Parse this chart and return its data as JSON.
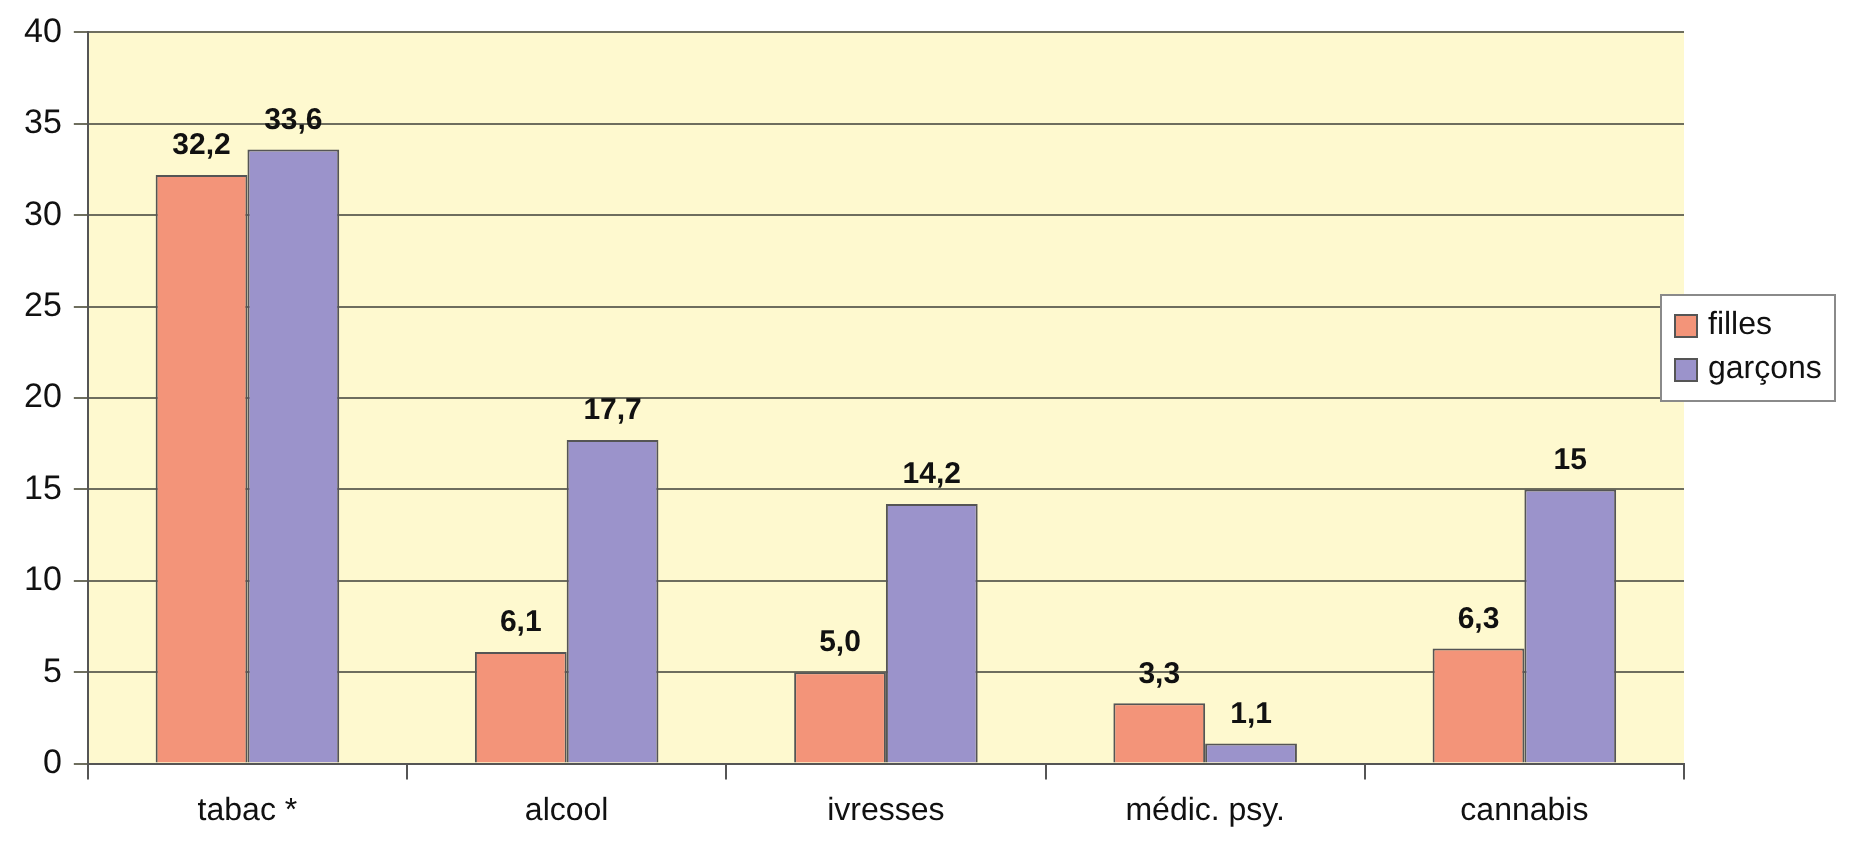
{
  "chart_data": {
    "type": "bar",
    "categories": [
      "tabac *",
      "alcool",
      "ivresses",
      "médic. psy.",
      "cannabis"
    ],
    "series": [
      {
        "name": "filles",
        "color": "#f39479",
        "values": [
          32.2,
          6.1,
          5.0,
          3.3,
          6.3
        ],
        "value_labels": [
          "32,2",
          "6,1",
          "5,0",
          "3,3",
          "6,3"
        ]
      },
      {
        "name": "garçons",
        "color": "#9b93cb",
        "values": [
          33.6,
          17.7,
          14.2,
          1.1,
          15
        ],
        "value_labels": [
          "33,6",
          "17,7",
          "14,2",
          "1,1",
          "15"
        ]
      }
    ],
    "ylim": [
      0,
      40
    ],
    "yticks": [
      0,
      5,
      10,
      15,
      20,
      25,
      30,
      35,
      40
    ],
    "grid": "y",
    "legend": "right"
  }
}
